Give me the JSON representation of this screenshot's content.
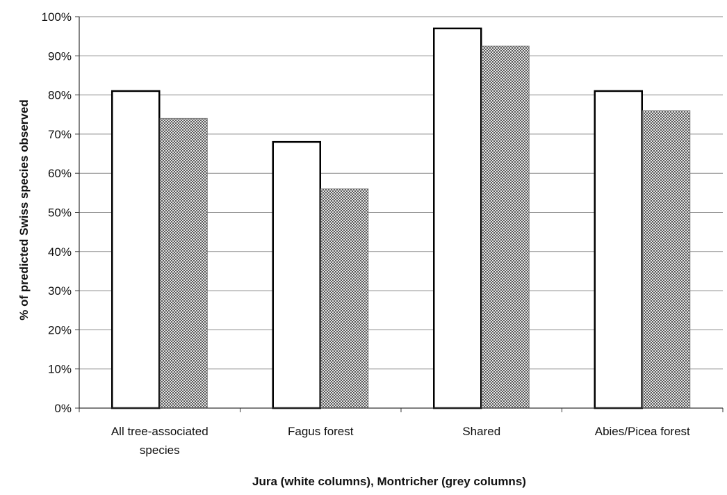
{
  "chart_data": {
    "type": "bar",
    "categories": [
      [
        "All tree-associated",
        "species"
      ],
      [
        "Fagus forest"
      ],
      [
        "Shared"
      ],
      [
        "Abies/Picea forest"
      ]
    ],
    "series": [
      {
        "values": [
          81,
          68,
          97,
          81
        ],
        "color": "#ffffff",
        "pattern": "none"
      },
      {
        "values": [
          74,
          56,
          92.5,
          76
        ],
        "color": "#c4c4c4",
        "pattern": "stipple"
      }
    ],
    "title": "",
    "xlabel": "Jura (white columns),  Montricher (grey columns)",
    "ylabel": "% of predicted Swiss species observed",
    "ylim": [
      0,
      100
    ],
    "yticks": [
      0,
      10,
      20,
      30,
      40,
      50,
      60,
      70,
      80,
      90,
      100
    ],
    "ytick_format": "{v}%",
    "grid": true,
    "legend": "none"
  }
}
